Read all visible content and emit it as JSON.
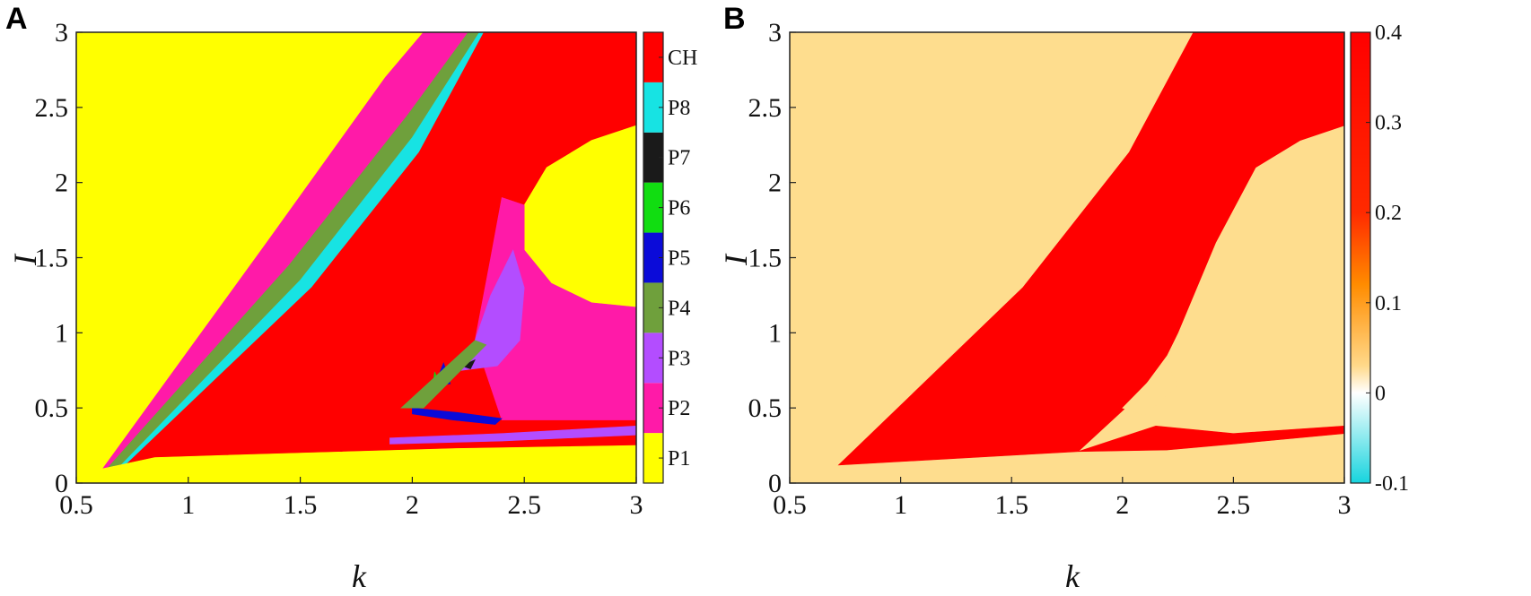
{
  "chart_data": [
    {
      "panel_label": "A",
      "type": "heatmap",
      "xlabel": "k",
      "ylabel": "I",
      "xlim": [
        0.5,
        3
      ],
      "ylim": [
        0,
        3
      ],
      "xticks": [
        0.5,
        1,
        1.5,
        2,
        2.5,
        3
      ],
      "yticks": [
        0,
        0.5,
        1,
        1.5,
        2,
        2.5,
        3
      ],
      "xtick_labels": [
        "0.5",
        "1",
        "1.5",
        "2",
        "2.5",
        "3"
      ],
      "ytick_labels": [
        "0",
        "0.5",
        "1",
        "1.5",
        "2",
        "2.5",
        "3"
      ],
      "colorbar": {
        "type": "categorical",
        "labels": [
          "P1",
          "P2",
          "P3",
          "P4",
          "P5",
          "P6",
          "P7",
          "P8",
          "CH"
        ],
        "colors": [
          "#ffff00",
          "#ff1aa8",
          "#b34dff",
          "#6fa03c",
          "#0b0bd9",
          "#11dd11",
          "#1a1a1a",
          "#17e3e3",
          "#ff0000"
        ]
      },
      "regions": [
        {
          "label": "P1",
          "color": "#ffff00",
          "polygon": [
            [
              0.5,
              0
            ],
            [
              3,
              0
            ],
            [
              3,
              3
            ],
            [
              0.5,
              3
            ]
          ]
        },
        {
          "label": "P2",
          "color": "#ff1aa8",
          "polygon": [
            [
              0.62,
              0.1
            ],
            [
              1.35,
              1.6
            ],
            [
              1.88,
              2.7
            ],
            [
              2.05,
              3
            ],
            [
              3,
              3
            ],
            [
              3,
              0.1
            ]
          ]
        },
        {
          "label": "P4",
          "color": "#6fa03c",
          "polygon": [
            [
              0.64,
              0.1
            ],
            [
              1.45,
              1.45
            ],
            [
              1.98,
              2.45
            ],
            [
              2.25,
              3
            ],
            [
              3,
              3
            ],
            [
              3,
              0.12
            ]
          ]
        },
        {
          "label": "P8",
          "color": "#17e3e3",
          "polygon": [
            [
              0.7,
              0.12
            ],
            [
              1.5,
              1.35
            ],
            [
              2,
              2.3
            ],
            [
              2.3,
              3
            ],
            [
              3,
              3
            ],
            [
              3,
              0.12
            ]
          ]
        },
        {
          "label": "CH",
          "color": "#ff0000",
          "polygon": [
            [
              0.72,
              0.12
            ],
            [
              1.55,
              1.3
            ],
            [
              2.03,
              2.2
            ],
            [
              2.32,
              3
            ],
            [
              3,
              3
            ],
            [
              3,
              0.12
            ]
          ]
        },
        {
          "label": "P1",
          "color": "#ffff00",
          "polygon": [
            [
              3,
              2.38
            ],
            [
              2.8,
              2.28
            ],
            [
              2.6,
              2.1
            ],
            [
              2.5,
              1.85
            ],
            [
              2.5,
              1.55
            ],
            [
              2.62,
              1.33
            ],
            [
              2.8,
              1.2
            ],
            [
              3,
              1.17
            ]
          ]
        },
        {
          "label": "P2",
          "color": "#ff1aa8",
          "polygon": [
            [
              2.4,
              1.9
            ],
            [
              2.5,
              1.85
            ],
            [
              2.5,
              1.55
            ],
            [
              2.62,
              1.33
            ],
            [
              2.8,
              1.2
            ],
            [
              3,
              1.17
            ],
            [
              3,
              0.42
            ],
            [
              2.4,
              0.42
            ],
            [
              2.28,
              0.95
            ],
            [
              2.35,
              1.5
            ]
          ]
        },
        {
          "label": "P3",
          "color": "#b34dff",
          "polygon": [
            [
              2.28,
              0.95
            ],
            [
              2.35,
              1.25
            ],
            [
              2.45,
              1.55
            ],
            [
              2.5,
              1.3
            ],
            [
              2.48,
              0.95
            ],
            [
              2.38,
              0.78
            ],
            [
              2.22,
              0.75
            ]
          ]
        },
        {
          "label": "P1",
          "color": "#ffff00",
          "polygon": [
            [
              0.6,
              0.09
            ],
            [
              0.85,
              0.17
            ],
            [
              1.5,
              0.2
            ],
            [
              2.2,
              0.23
            ],
            [
              3,
              0.25
            ],
            [
              3,
              0
            ],
            [
              0.5,
              0
            ]
          ]
        },
        {
          "label": "P5",
          "color": "#0b0bd9",
          "polygon": [
            [
              2.0,
              0.5
            ],
            [
              2.2,
              0.47
            ],
            [
              2.4,
              0.43
            ],
            [
              2.37,
              0.39
            ],
            [
              2.18,
              0.42
            ],
            [
              2.0,
              0.46
            ]
          ]
        },
        {
          "label": "P5",
          "color": "#0b0bd9",
          "polygon": [
            [
              2.1,
              0.65
            ],
            [
              2.14,
              0.8
            ],
            [
              2.17,
              0.66
            ]
          ]
        },
        {
          "label": "P6",
          "color": "#11dd11",
          "polygon": [
            [
              2.09,
              0.64
            ],
            [
              2.1,
              0.74
            ],
            [
              2.12,
              0.66
            ]
          ]
        },
        {
          "label": "P7",
          "color": "#1a1a1a",
          "polygon": [
            [
              2.22,
              0.78
            ],
            [
              2.28,
              0.82
            ],
            [
              2.26,
              0.76
            ]
          ]
        },
        {
          "label": "P3",
          "color": "#b34dff",
          "polygon": [
            [
              1.9,
              0.3
            ],
            [
              2.4,
              0.33
            ],
            [
              3,
              0.38
            ],
            [
              3,
              0.32
            ],
            [
              2.4,
              0.28
            ],
            [
              1.9,
              0.26
            ]
          ]
        },
        {
          "label": "P4",
          "color": "#6fa03c",
          "polygon": [
            [
              1.95,
              0.5
            ],
            [
              2.28,
              0.95
            ],
            [
              2.33,
              0.92
            ],
            [
              2.05,
              0.5
            ]
          ]
        }
      ]
    },
    {
      "panel_label": "B",
      "type": "heatmap",
      "xlabel": "k",
      "ylabel": "I",
      "xlim": [
        0.5,
        3
      ],
      "ylim": [
        0,
        3
      ],
      "xticks": [
        0.5,
        1,
        1.5,
        2,
        2.5,
        3
      ],
      "yticks": [
        0,
        0.5,
        1,
        1.5,
        2,
        2.5,
        3
      ],
      "xtick_labels": [
        "0.5",
        "1",
        "1.5",
        "2",
        "2.5",
        "3"
      ],
      "ytick_labels": [
        "0",
        "0.5",
        "1",
        "1.5",
        "2",
        "2.5",
        "3"
      ],
      "colorbar": {
        "type": "continuous",
        "range": [
          -0.1,
          0.4
        ],
        "ticks": [
          -0.1,
          0,
          0.1,
          0.2,
          0.3,
          0.4
        ],
        "tick_labels": [
          "-0.1",
          "0",
          "0.1",
          "0.2",
          "0.3",
          "0.4"
        ],
        "colormap": [
          {
            "value": -0.1,
            "color": "#17d4de"
          },
          {
            "value": 0,
            "color": "#ffffff"
          },
          {
            "value": 0.03,
            "color": "#ffd98a"
          },
          {
            "value": 0.12,
            "color": "#ff8c00"
          },
          {
            "value": 0.2,
            "color": "#ff2a00"
          },
          {
            "value": 0.4,
            "color": "#ff0000"
          }
        ]
      },
      "regions": [
        {
          "label": "0",
          "color": "#fedd8e",
          "polygon": [
            [
              0.5,
              0
            ],
            [
              3,
              0
            ],
            [
              3,
              3
            ],
            [
              0.5,
              3
            ]
          ]
        },
        {
          "label": "0.4",
          "color": "#ff0000",
          "polygon": [
            [
              0.72,
              0.12
            ],
            [
              1.55,
              1.3
            ],
            [
              2.03,
              2.2
            ],
            [
              2.32,
              3
            ],
            [
              3,
              3
            ],
            [
              3,
              2.38
            ],
            [
              2.8,
              2.28
            ],
            [
              2.6,
              2.1
            ],
            [
              2.42,
              1.6
            ],
            [
              2.25,
              1.0
            ],
            [
              2.2,
              0.85
            ],
            [
              2.05,
              0.55
            ],
            [
              1.8,
              0.21
            ]
          ]
        },
        {
          "label": "0.4",
          "color": "#ff0000",
          "polygon": [
            [
              1.8,
              0.21
            ],
            [
              2.15,
              0.38
            ],
            [
              2.5,
              0.33
            ],
            [
              3,
              0.38
            ],
            [
              3,
              0.33
            ],
            [
              2.5,
              0.26
            ],
            [
              2.2,
              0.22
            ]
          ]
        },
        {
          "label": "0",
          "color": "#fedd8e",
          "polygon": [
            [
              2.0,
              0.5
            ],
            [
              2.2,
              0.8
            ],
            [
              2.25,
              0.65
            ],
            [
              2.1,
              0.45
            ]
          ]
        }
      ]
    }
  ]
}
